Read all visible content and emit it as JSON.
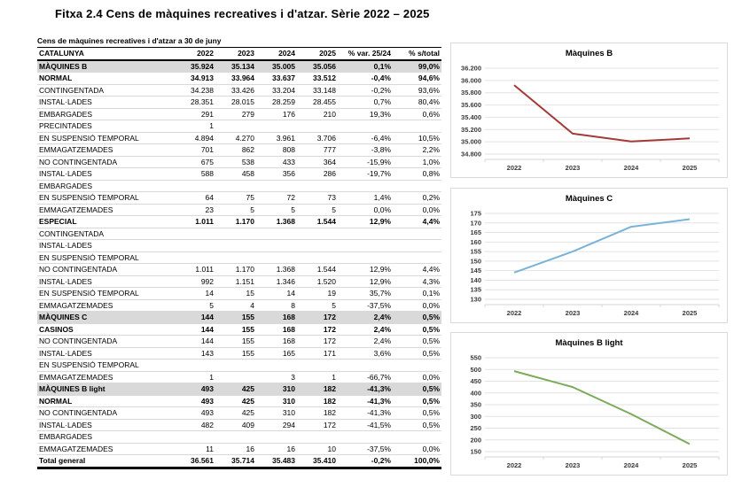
{
  "page": {
    "title": "Fitxa 2.4 Cens de màquines recreatives i d'atzar. Sèrie 2022 – 2025"
  },
  "table": {
    "subtitle": "Cens de màquines recreatives i d'atzar a 30 de juny",
    "columns": [
      "CATALUNYA",
      "2022",
      "2023",
      "2024",
      "2025",
      "% var. 25/24",
      "% s/total"
    ],
    "rows": [
      {
        "label": "MÀQUINES B",
        "indent": 0,
        "style": "section",
        "values": [
          "35.924",
          "35.134",
          "35.005",
          "35.056",
          "0,1%",
          "99,0%"
        ]
      },
      {
        "label": "NORMAL",
        "indent": 1,
        "style": "subtotal",
        "values": [
          "34.913",
          "33.964",
          "33.637",
          "33.512",
          "-0,4%",
          "94,6%"
        ]
      },
      {
        "label": "CONTINGENTADA",
        "indent": 2,
        "style": "plain",
        "values": [
          "34.238",
          "33.426",
          "33.204",
          "33.148",
          "-0,2%",
          "93,6%"
        ]
      },
      {
        "label": "INSTAL·LADES",
        "indent": 3,
        "style": "plain",
        "values": [
          "28.351",
          "28.015",
          "28.259",
          "28.455",
          "0,7%",
          "80,4%"
        ]
      },
      {
        "label": "EMBARGADES",
        "indent": 3,
        "style": "plain",
        "values": [
          "291",
          "279",
          "176",
          "210",
          "19,3%",
          "0,6%"
        ]
      },
      {
        "label": "PRECINTADES",
        "indent": 3,
        "style": "plain",
        "values": [
          "1",
          "",
          "",
          "",
          "",
          ""
        ]
      },
      {
        "label": "EN SUSPENSIÓ TEMPORAL",
        "indent": 3,
        "style": "plain",
        "values": [
          "4.894",
          "4.270",
          "3.961",
          "3.706",
          "-6,4%",
          "10,5%"
        ]
      },
      {
        "label": "EMMAGATZEMADES",
        "indent": 3,
        "style": "plain",
        "values": [
          "701",
          "862",
          "808",
          "777",
          "-3,8%",
          "2,2%"
        ]
      },
      {
        "label": "NO CONTINGENTADA",
        "indent": 2,
        "style": "plain",
        "values": [
          "675",
          "538",
          "433",
          "364",
          "-15,9%",
          "1,0%"
        ]
      },
      {
        "label": "INSTAL·LADES",
        "indent": 3,
        "style": "plain",
        "values": [
          "588",
          "458",
          "356",
          "286",
          "-19,7%",
          "0,8%"
        ]
      },
      {
        "label": "EMBARGADES",
        "indent": 3,
        "style": "plain",
        "values": [
          "",
          "",
          "",
          "",
          "",
          ""
        ]
      },
      {
        "label": "EN SUSPENSIÓ TEMPORAL",
        "indent": 3,
        "style": "plain",
        "values": [
          "64",
          "75",
          "72",
          "73",
          "1,4%",
          "0,2%"
        ]
      },
      {
        "label": "EMMAGATZEMADES",
        "indent": 3,
        "style": "plain",
        "values": [
          "23",
          "5",
          "5",
          "5",
          "0,0%",
          "0,0%"
        ]
      },
      {
        "label": "ESPECIAL",
        "indent": 1,
        "style": "subtotal",
        "values": [
          "1.011",
          "1.170",
          "1.368",
          "1.544",
          "12,9%",
          "4,4%"
        ]
      },
      {
        "label": "CONTINGENTADA",
        "indent": 2,
        "style": "plain",
        "values": [
          "",
          "",
          "",
          "",
          "",
          ""
        ]
      },
      {
        "label": "INSTAL·LADES",
        "indent": 3,
        "style": "plain",
        "values": [
          "",
          "",
          "",
          "",
          "",
          ""
        ]
      },
      {
        "label": "EN SUSPENSIÓ TEMPORAL",
        "indent": 3,
        "style": "plain",
        "values": [
          "",
          "",
          "",
          "",
          "",
          ""
        ]
      },
      {
        "label": "NO CONTINGENTADA",
        "indent": 2,
        "style": "plain",
        "values": [
          "1.011",
          "1.170",
          "1.368",
          "1.544",
          "12,9%",
          "4,4%"
        ]
      },
      {
        "label": "INSTAL·LADES",
        "indent": 3,
        "style": "plain",
        "values": [
          "992",
          "1.151",
          "1.346",
          "1.520",
          "12,9%",
          "4,3%"
        ]
      },
      {
        "label": "EN SUSPENSIÓ TEMPORAL",
        "indent": 3,
        "style": "plain",
        "values": [
          "14",
          "15",
          "14",
          "19",
          "35,7%",
          "0,1%"
        ]
      },
      {
        "label": "EMMAGATZEMADES",
        "indent": 3,
        "style": "plain",
        "values": [
          "5",
          "4",
          "8",
          "5",
          "-37,5%",
          "0,0%"
        ]
      },
      {
        "label": "MÀQUINES C",
        "indent": 0,
        "style": "section",
        "values": [
          "144",
          "155",
          "168",
          "172",
          "2,4%",
          "0,5%"
        ]
      },
      {
        "label": "CASINOS",
        "indent": 1,
        "style": "subtotal",
        "values": [
          "144",
          "155",
          "168",
          "172",
          "2,4%",
          "0,5%"
        ]
      },
      {
        "label": "NO CONTINGENTADA",
        "indent": 2,
        "style": "plain",
        "values": [
          "144",
          "155",
          "168",
          "172",
          "2,4%",
          "0,5%"
        ]
      },
      {
        "label": "INSTAL·LADES",
        "indent": 3,
        "style": "plain",
        "values": [
          "143",
          "155",
          "165",
          "171",
          "3,6%",
          "0,5%"
        ]
      },
      {
        "label": "EN SUSPENSIÓ TEMPORAL",
        "indent": 3,
        "style": "plain",
        "values": [
          "",
          "",
          "",
          "",
          "",
          ""
        ]
      },
      {
        "label": "EMMAGATZEMADES",
        "indent": 3,
        "style": "plain",
        "values": [
          "1",
          "",
          "3",
          "1",
          "-66,7%",
          "0,0%"
        ]
      },
      {
        "label": "MÀQUINES B light",
        "indent": 0,
        "style": "section",
        "values": [
          "493",
          "425",
          "310",
          "182",
          "-41,3%",
          "0,5%"
        ]
      },
      {
        "label": "NORMAL",
        "indent": 1,
        "style": "subtotal",
        "values": [
          "493",
          "425",
          "310",
          "182",
          "-41,3%",
          "0,5%"
        ]
      },
      {
        "label": "NO CONTINGENTADA",
        "indent": 2,
        "style": "plain",
        "values": [
          "493",
          "425",
          "310",
          "182",
          "-41,3%",
          "0,5%"
        ]
      },
      {
        "label": "INSTAL·LADES",
        "indent": 3,
        "style": "plain",
        "values": [
          "482",
          "409",
          "294",
          "172",
          "-41,5%",
          "0,5%"
        ]
      },
      {
        "label": "EMBARGADES",
        "indent": 3,
        "style": "plain",
        "values": [
          "",
          "",
          "",
          "",
          "",
          ""
        ]
      },
      {
        "label": "EMMAGATZEMADES",
        "indent": 3,
        "style": "plain",
        "values": [
          "11",
          "16",
          "16",
          "10",
          "-37,5%",
          "0,0%"
        ]
      },
      {
        "label": "Total general",
        "indent": 0,
        "style": "total",
        "values": [
          "36.561",
          "35.714",
          "35.483",
          "35.410",
          "-0,2%",
          "100,0%"
        ]
      }
    ]
  },
  "chart_data": [
    {
      "type": "line",
      "title": "Màquines B",
      "color": "#a23b36",
      "categories": [
        "2022",
        "2023",
        "2024",
        "2025"
      ],
      "values": [
        35924,
        35134,
        35005,
        35056
      ],
      "ylim": [
        34800,
        36200
      ],
      "ystep": 200,
      "ytick_labels": [
        "34.800",
        "35.000",
        "35.200",
        "35.400",
        "35.600",
        "35.800",
        "36.000",
        "36.200"
      ],
      "grid": true,
      "legend": "none"
    },
    {
      "type": "line",
      "title": "Màquines  C",
      "color": "#7ab3da",
      "categories": [
        "2022",
        "2023",
        "2024",
        "2025"
      ],
      "values": [
        144,
        155,
        168,
        172
      ],
      "ylim": [
        130,
        175
      ],
      "ystep": 5,
      "ytick_labels": [
        "130",
        "135",
        "140",
        "145",
        "150",
        "155",
        "160",
        "165",
        "170",
        "175"
      ],
      "grid": true,
      "legend": "none"
    },
    {
      "type": "line",
      "title": "Màquines B light",
      "color": "#7bab59",
      "categories": [
        "2022",
        "2023",
        "2024",
        "2025"
      ],
      "values": [
        493,
        425,
        310,
        182
      ],
      "ylim": [
        150,
        550
      ],
      "ystep": 50,
      "ytick_labels": [
        "150",
        "200",
        "250",
        "300",
        "350",
        "400",
        "450",
        "500",
        "550"
      ],
      "grid": true,
      "legend": "none"
    }
  ],
  "colors": {
    "section_band": "#d9d9d9",
    "gridline": "#e2e2e2",
    "table_rule": "#d9d9d9",
    "heavy_rule": "#000000"
  }
}
